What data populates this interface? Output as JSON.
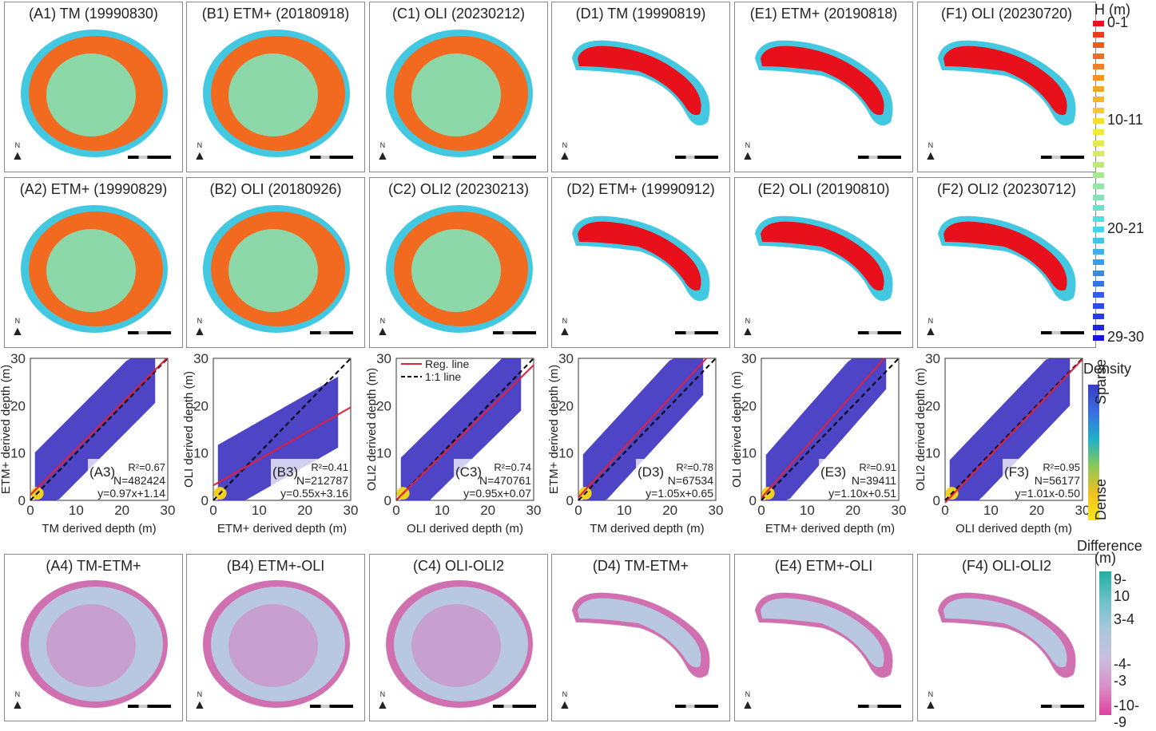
{
  "figure": {
    "row1_titles": [
      "(A1) TM (19990830)",
      "(B1) ETM+ (20180918)",
      "(C1) OLI (20230212)",
      "(D1) TM (19990819)",
      "(E1) ETM+ (20190818)",
      "(F1) OLI (20230720)"
    ],
    "row2_titles": [
      "(A2) ETM+ (19990829)",
      "(B2) OLI (20180926)",
      "(C2) OLI2 (20230213)",
      "(D2) ETM+ (19990912)",
      "(E2) OLI (20190810)",
      "(F2) OLI2 (20230712)"
    ],
    "row4_titles": [
      "(A4) TM-ETM+",
      "(B4) ETM+-OLI",
      "(C4) OLI-OLI2",
      "(D4) TM-ETM+",
      "(E4) ETM+-OLI",
      "(F4) OLI-OLI2"
    ],
    "north_label": "N",
    "depth_legend": {
      "title": "H (m)",
      "labels": [
        "0-1",
        "10-11",
        "20-21",
        "29-30"
      ],
      "colors": [
        "#e8101a",
        "#ef3a1c",
        "#f05a1e",
        "#f26c22",
        "#f28026",
        "#f39228",
        "#f5a52a",
        "#f5b52c",
        "#f5c830",
        "#f5dc32",
        "#f0e83a",
        "#e4ec4a",
        "#d4ec60",
        "#c0ea78",
        "#a8e890",
        "#94e6a4",
        "#80e4b8",
        "#6ce2cc",
        "#58dce0",
        "#44d4ec",
        "#40c4ec",
        "#40b0ec",
        "#3c9cec",
        "#3888ea",
        "#3474e8",
        "#3060e6",
        "#2c4ce4",
        "#2838e2",
        "#2424e0",
        "#1818d8"
      ]
    },
    "density_legend": {
      "title": "Density",
      "top": "Sparse",
      "bottom": "Dense"
    },
    "difference_legend": {
      "title": "Difference",
      "unit": "(m)",
      "labels": [
        "9-10",
        "3-4",
        "-4--3",
        "-10--9"
      ]
    }
  },
  "chart_data": [
    {
      "type": "scatter",
      "panel": "(A3)",
      "xlabel": "TM derived depth (m)",
      "ylabel": "ETM+ derived depth (m)",
      "xlim": [
        0,
        30
      ],
      "ylim": [
        0,
        30
      ],
      "ticks": [
        0,
        10,
        20,
        30
      ],
      "r2": "R²=0.67",
      "n": "N=482424",
      "equation": "y=0.97x+1.14",
      "slope": 0.97,
      "intercept": 1.14,
      "legend": null
    },
    {
      "type": "scatter",
      "panel": "(B3)",
      "xlabel": "ETM+ derived depth (m)",
      "ylabel": "OLI derived depth (m)",
      "xlim": [
        0,
        30
      ],
      "ylim": [
        0,
        30
      ],
      "ticks": [
        0,
        10,
        20,
        30
      ],
      "r2": "R²=0.41",
      "n": "N=212787",
      "equation": "y=0.55x+3.16",
      "slope": 0.55,
      "intercept": 3.16,
      "legend": null
    },
    {
      "type": "scatter",
      "panel": "(C3)",
      "xlabel": "OLI derived depth (m)",
      "ylabel": "OLI2 derived depth (m)",
      "xlim": [
        0,
        30
      ],
      "ylim": [
        0,
        30
      ],
      "ticks": [
        0,
        10,
        20,
        30
      ],
      "r2": "R²=0.74",
      "n": "N=470761",
      "equation": "y=0.95x+0.07",
      "slope": 0.95,
      "intercept": 0.07,
      "legend": [
        "Reg. line",
        "1:1 line"
      ]
    },
    {
      "type": "scatter",
      "panel": "(D3)",
      "xlabel": "TM derived depth (m)",
      "ylabel": "ETM+ derived depth (m)",
      "xlim": [
        0,
        30
      ],
      "ylim": [
        0,
        30
      ],
      "ticks": [
        0,
        10,
        20,
        30
      ],
      "r2": "R²=0.78",
      "n": "N=67534",
      "equation": "y=1.05x+0.65",
      "slope": 1.05,
      "intercept": 0.65,
      "legend": null
    },
    {
      "type": "scatter",
      "panel": "(E3)",
      "xlabel": "ETM+ derived depth (m)",
      "ylabel": "OLI derived depth (m)",
      "xlim": [
        0,
        30
      ],
      "ylim": [
        0,
        30
      ],
      "ticks": [
        0,
        10,
        20,
        30
      ],
      "r2": "R²=0.91",
      "n": "N=39411",
      "equation": "y=1.10x+0.51",
      "slope": 1.1,
      "intercept": 0.51,
      "legend": null
    },
    {
      "type": "scatter",
      "panel": "(F3)",
      "xlabel": "OLI derived depth (m)",
      "ylabel": "OLI2 derived depth (m)",
      "xlim": [
        0,
        30
      ],
      "ylim": [
        0,
        30
      ],
      "ticks": [
        0,
        10,
        20,
        30
      ],
      "r2": "R²=0.95",
      "n": "N=56177",
      "equation": "y=1.01x-0.50",
      "slope": 1.01,
      "intercept": -0.5,
      "legend": null
    }
  ]
}
